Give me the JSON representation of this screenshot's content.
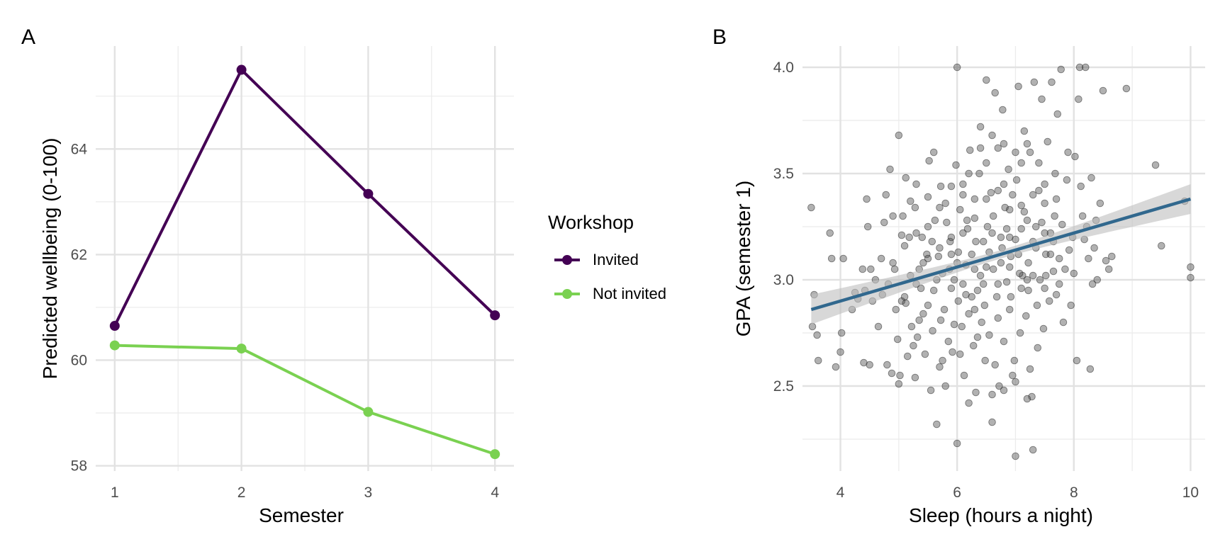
{
  "chart_data": [
    {
      "panel": "A",
      "type": "line",
      "xlabel": "Semester",
      "ylabel": "Predicted wellbeing (0-100)",
      "x": [
        1,
        2,
        3,
        4
      ],
      "xticks": [
        1,
        2,
        3,
        4
      ],
      "yticks": [
        58,
        60,
        62,
        64
      ],
      "xlim": [
        0.85,
        4.15
      ],
      "ylim": [
        57.9,
        65.95
      ],
      "grid": true,
      "legend": {
        "title": "Workshop",
        "placement": "right",
        "entries": [
          "Invited",
          "Not invited"
        ]
      },
      "series": [
        {
          "name": "Invited",
          "color": "#440154",
          "values": [
            60.65,
            65.5,
            63.15,
            60.85
          ]
        },
        {
          "name": "Not invited",
          "color": "#7AD151",
          "values": [
            60.28,
            60.22,
            59.02,
            58.22
          ]
        }
      ]
    },
    {
      "panel": "B",
      "type": "scatter",
      "xlabel": "Sleep (hours a night)",
      "ylabel": "GPA (semester 1)",
      "xticks": [
        4,
        6,
        8,
        10
      ],
      "yticks": [
        2.5,
        3.0,
        3.5,
        4.0
      ],
      "ytick_labels": [
        "2.5",
        "3.0",
        "3.5",
        "4.0"
      ],
      "xlim": [
        3.35,
        10.25
      ],
      "ylim": [
        2.1,
        4.1
      ],
      "grid": true,
      "point_color": "#444444",
      "fit": {
        "method": "linear",
        "color": "#31688E",
        "band_color": "#BEBEBE",
        "x": [
          3.5,
          10
        ],
        "y": [
          2.86,
          3.38
        ],
        "se_at_ends": 0.07,
        "se_at_center": 0.02
      },
      "points": [
        [
          3.5,
          3.34
        ],
        [
          3.52,
          2.78
        ],
        [
          3.55,
          2.93
        ],
        [
          3.6,
          2.74
        ],
        [
          3.62,
          2.62
        ],
        [
          3.82,
          3.22
        ],
        [
          3.85,
          3.1
        ],
        [
          3.92,
          2.59
        ],
        [
          4.0,
          2.66
        ],
        [
          4.02,
          2.75
        ],
        [
          4.05,
          3.1
        ],
        [
          4.2,
          2.86
        ],
        [
          4.25,
          2.94
        ],
        [
          4.3,
          2.91
        ],
        [
          4.38,
          3.05
        ],
        [
          4.4,
          2.61
        ],
        [
          4.42,
          2.95
        ],
        [
          4.45,
          3.38
        ],
        [
          4.47,
          3.25
        ],
        [
          4.5,
          2.6
        ],
        [
          4.52,
          3.05
        ],
        [
          4.55,
          2.9
        ],
        [
          4.6,
          3.0
        ],
        [
          4.65,
          2.78
        ],
        [
          4.7,
          3.1
        ],
        [
          4.72,
          2.93
        ],
        [
          4.75,
          3.27
        ],
        [
          4.78,
          3.4
        ],
        [
          4.8,
          2.6
        ],
        [
          4.82,
          2.98
        ],
        [
          4.85,
          3.52
        ],
        [
          4.88,
          2.56
        ],
        [
          4.9,
          3.08
        ],
        [
          4.93,
          3.05
        ],
        [
          4.95,
          2.86
        ],
        [
          4.98,
          2.72
        ],
        [
          5.0,
          2.51
        ],
        [
          5.0,
          3.68
        ],
        [
          5.02,
          2.55
        ],
        [
          5.05,
          2.9
        ],
        [
          5.07,
          3.3
        ],
        [
          5.1,
          3.16
        ],
        [
          5.12,
          2.89
        ],
        [
          5.15,
          2.64
        ],
        [
          5.18,
          3.2
        ],
        [
          5.2,
          3.37
        ],
        [
          5.22,
          2.78
        ],
        [
          5.25,
          2.69
        ],
        [
          5.28,
          2.54
        ],
        [
          5.3,
          3.45
        ],
        [
          5.32,
          2.73
        ],
        [
          5.35,
          3.05
        ],
        [
          5.38,
          2.96
        ],
        [
          5.4,
          3.2
        ],
        [
          5.42,
          2.84
        ],
        [
          5.45,
          2.65
        ],
        [
          5.48,
          3.12
        ],
        [
          5.5,
          3.39
        ],
        [
          5.52,
          3.56
        ],
        [
          5.55,
          2.48
        ],
        [
          5.58,
          2.76
        ],
        [
          5.6,
          2.95
        ],
        [
          5.62,
          3.28
        ],
        [
          5.65,
          2.32
        ],
        [
          5.68,
          3.11
        ],
        [
          5.7,
          2.59
        ],
        [
          5.72,
          3.44
        ],
        [
          5.75,
          3.03
        ],
        [
          5.78,
          2.86
        ],
        [
          5.8,
          2.5
        ],
        [
          5.82,
          3.27
        ],
        [
          5.85,
          2.71
        ],
        [
          5.88,
          3.18
        ],
        [
          5.9,
          3.44
        ],
        [
          5.92,
          2.66
        ],
        [
          5.95,
          3.0
        ],
        [
          5.98,
          3.54
        ],
        [
          6.0,
          4.0
        ],
        [
          6.0,
          2.23
        ],
        [
          6.02,
          2.9
        ],
        [
          6.05,
          3.33
        ],
        [
          6.08,
          2.78
        ],
        [
          6.1,
          3.45
        ],
        [
          6.12,
          2.55
        ],
        [
          6.15,
          3.07
        ],
        [
          6.18,
          3.24
        ],
        [
          6.2,
          2.84
        ],
        [
          6.22,
          3.61
        ],
        [
          6.25,
          3.12
        ],
        [
          6.28,
          2.69
        ],
        [
          6.3,
          3.38
        ],
        [
          6.32,
          2.47
        ],
        [
          6.35,
          2.95
        ],
        [
          6.38,
          3.5
        ],
        [
          6.4,
          3.72
        ],
        [
          6.42,
          2.8
        ],
        [
          6.45,
          3.18
        ],
        [
          6.48,
          2.62
        ],
        [
          6.5,
          3.94
        ],
        [
          6.52,
          3.25
        ],
        [
          6.55,
          2.74
        ],
        [
          6.58,
          3.41
        ],
        [
          6.6,
          2.33
        ],
        [
          6.62,
          3.05
        ],
        [
          6.65,
          3.88
        ],
        [
          6.68,
          2.92
        ],
        [
          6.7,
          3.62
        ],
        [
          6.72,
          2.5
        ],
        [
          6.75,
          3.2
        ],
        [
          6.78,
          3.8
        ],
        [
          6.8,
          2.71
        ],
        [
          6.82,
          3.34
        ],
        [
          6.85,
          2.99
        ],
        [
          6.88,
          3.52
        ],
        [
          6.9,
          2.86
        ],
        [
          6.92,
          3.11
        ],
        [
          6.95,
          3.4
        ],
        [
          6.98,
          2.62
        ],
        [
          7.0,
          2.17
        ],
        [
          7.02,
          3.47
        ],
        [
          7.05,
          3.91
        ],
        [
          7.08,
          2.75
        ],
        [
          7.1,
          3.55
        ],
        [
          7.12,
          3.02
        ],
        [
          7.15,
          3.7
        ],
        [
          7.18,
          2.83
        ],
        [
          7.2,
          3.28
        ],
        [
          7.22,
          2.95
        ],
        [
          7.25,
          3.6
        ],
        [
          7.28,
          2.45
        ],
        [
          7.3,
          2.2
        ],
        [
          7.32,
          3.93
        ],
        [
          7.35,
          3.15
        ],
        [
          7.38,
          2.68
        ],
        [
          7.4,
          3.42
        ],
        [
          7.42,
          3.0
        ],
        [
          7.45,
          3.85
        ],
        [
          7.48,
          2.77
        ],
        [
          7.5,
          3.36
        ],
        [
          7.52,
          3.12
        ],
        [
          7.55,
          3.65
        ],
        [
          7.58,
          2.9
        ],
        [
          7.6,
          3.22
        ],
        [
          7.62,
          3.93
        ],
        [
          7.65,
          3.04
        ],
        [
          7.68,
          3.5
        ],
        [
          7.7,
          2.93
        ],
        [
          7.72,
          3.78
        ],
        [
          7.75,
          3.1
        ],
        [
          7.78,
          3.99
        ],
        [
          7.8,
          3.26
        ],
        [
          7.82,
          2.8
        ],
        [
          7.85,
          3.05
        ],
        [
          7.88,
          3.47
        ],
        [
          7.9,
          3.6
        ],
        [
          7.92,
          3.14
        ],
        [
          7.95,
          2.88
        ],
        [
          7.98,
          3.2
        ],
        [
          8.0,
          3.03
        ],
        [
          8.02,
          3.58
        ],
        [
          8.05,
          2.62
        ],
        [
          8.08,
          3.85
        ],
        [
          8.1,
          4.0
        ],
        [
          8.12,
          3.44
        ],
        [
          8.15,
          3.3
        ],
        [
          8.18,
          3.19
        ],
        [
          8.2,
          4.0
        ],
        [
          8.22,
          3.25
        ],
        [
          8.25,
          3.1
        ],
        [
          8.28,
          2.58
        ],
        [
          8.3,
          3.48
        ],
        [
          8.32,
          2.98
        ],
        [
          8.35,
          3.15
        ],
        [
          8.38,
          3.28
        ],
        [
          8.4,
          3.0
        ],
        [
          8.45,
          3.36
        ],
        [
          8.5,
          3.89
        ],
        [
          8.55,
          3.09
        ],
        [
          8.6,
          3.05
        ],
        [
          8.65,
          3.11
        ],
        [
          8.9,
          3.9
        ],
        [
          9.4,
          3.54
        ],
        [
          9.5,
          3.16
        ],
        [
          9.9,
          3.37
        ],
        [
          10.0,
          3.06
        ],
        [
          10.0,
          3.01
        ],
        [
          5.05,
          3.21
        ],
        [
          5.12,
          3.48
        ],
        [
          5.2,
          3.02
        ],
        [
          5.28,
          3.34
        ],
        [
          5.35,
          2.81
        ],
        [
          5.42,
          3.08
        ],
        [
          5.5,
          2.88
        ],
        [
          5.57,
          3.18
        ],
        [
          5.65,
          3.0
        ],
        [
          5.72,
          2.81
        ],
        [
          5.8,
          3.36
        ],
        [
          5.87,
          3.05
        ],
        [
          5.95,
          2.79
        ],
        [
          6.02,
          3.13
        ],
        [
          6.1,
          2.98
        ],
        [
          6.17,
          3.28
        ],
        [
          6.25,
          2.92
        ],
        [
          6.32,
          3.18
        ],
        [
          6.4,
          3.02
        ],
        [
          6.47,
          2.88
        ],
        [
          6.55,
          3.13
        ],
        [
          6.62,
          3.3
        ],
        [
          6.7,
          2.98
        ],
        [
          6.77,
          3.15
        ],
        [
          6.85,
          3.24
        ],
        [
          6.92,
          2.92
        ],
        [
          7.0,
          3.19
        ],
        [
          7.07,
          3.03
        ],
        [
          7.15,
          3.32
        ],
        [
          7.22,
          3.08
        ],
        [
          7.3,
          3.18
        ],
        [
          7.37,
          2.88
        ],
        [
          7.45,
          3.27
        ],
        [
          7.52,
          3.02
        ],
        [
          7.6,
          3.12
        ],
        [
          7.67,
          3.3
        ],
        [
          7.75,
          2.98
        ],
        [
          6.05,
          2.65
        ],
        [
          6.2,
          3.5
        ],
        [
          6.35,
          2.73
        ],
        [
          6.5,
          3.55
        ],
        [
          6.65,
          2.6
        ],
        [
          6.8,
          3.45
        ],
        [
          6.95,
          2.55
        ],
        [
          7.1,
          3.35
        ],
        [
          7.25,
          2.58
        ],
        [
          5.6,
          3.6
        ],
        [
          5.75,
          2.62
        ],
        [
          5.9,
          3.2
        ],
        [
          6.0,
          3.08
        ],
        [
          6.15,
          2.93
        ],
        [
          6.3,
          3.05
        ],
        [
          6.45,
          2.98
        ],
        [
          6.6,
          3.22
        ],
        [
          6.75,
          3.08
        ],
        [
          6.9,
          3.2
        ],
        [
          7.05,
          3.12
        ],
        [
          7.2,
          3.0
        ],
        [
          7.35,
          3.25
        ],
        [
          7.5,
          3.22
        ],
        [
          7.65,
          3.18
        ],
        [
          5.3,
          2.98
        ],
        [
          5.5,
          3.1
        ],
        [
          5.7,
          3.15
        ],
        [
          5.9,
          2.96
        ],
        [
          6.1,
          3.22
        ],
        [
          6.3,
          3.29
        ],
        [
          6.5,
          3.38
        ],
        [
          6.7,
          3.42
        ],
        [
          6.9,
          3.33
        ],
        [
          7.1,
          3.24
        ],
        [
          7.3,
          3.4
        ],
        [
          7.5,
          3.45
        ],
        [
          4.9,
          3.3
        ],
        [
          5.1,
          2.92
        ],
        [
          5.3,
          3.22
        ],
        [
          5.5,
          3.25
        ],
        [
          5.7,
          3.34
        ],
        [
          5.9,
          3.12
        ],
        [
          6.1,
          3.4
        ],
        [
          6.3,
          2.86
        ],
        [
          6.5,
          3.06
        ],
        [
          6.7,
          2.82
        ],
        [
          6.9,
          3.06
        ],
        [
          7.1,
          2.96
        ],
        [
          7.3,
          3.02
        ],
        [
          7.5,
          2.96
        ],
        [
          7.7,
          3.38
        ],
        [
          6.2,
          2.42
        ],
        [
          6.6,
          2.46
        ],
        [
          6.8,
          2.48
        ],
        [
          7.0,
          2.52
        ],
        [
          7.2,
          2.44
        ],
        [
          6.4,
          3.62
        ],
        [
          6.6,
          3.68
        ],
        [
          6.8,
          3.64
        ],
        [
          7.0,
          3.6
        ],
        [
          7.2,
          3.64
        ],
        [
          7.4,
          3.55
        ]
      ]
    }
  ]
}
